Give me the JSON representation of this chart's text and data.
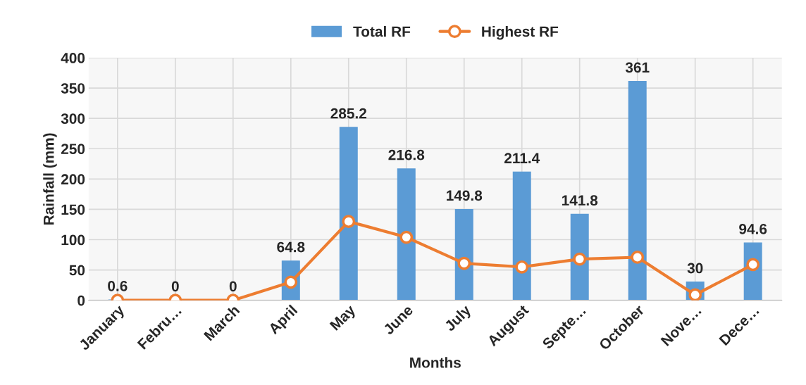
{
  "chart_data": {
    "type": "bar",
    "xlabel": "Months",
    "ylabel": "Rainfall (mm)",
    "categories": [
      "January",
      "Febru…",
      "March",
      "April",
      "May",
      "June",
      "July",
      "August",
      "Septe…",
      "October",
      "Nove…",
      "Dece…"
    ],
    "series": [
      {
        "name": "Total RF",
        "color": "#5b9bd5",
        "values": [
          0.6,
          0,
          0,
          64.8,
          285.2,
          216.8,
          149.8,
          211.4,
          141.8,
          361,
          30,
          94.6
        ],
        "data_labels": true
      },
      {
        "name": "Highest RF",
        "type": "line",
        "color": "#ed7d31",
        "marker": "circle",
        "values": [
          0,
          0,
          0,
          30,
          130,
          104,
          61,
          55,
          68,
          71,
          9,
          59
        ]
      }
    ],
    "ylim": [
      0,
      400
    ],
    "yticks": [
      0,
      50,
      100,
      150,
      200,
      250,
      300,
      350,
      400
    ],
    "grid": true,
    "legend": "top"
  }
}
